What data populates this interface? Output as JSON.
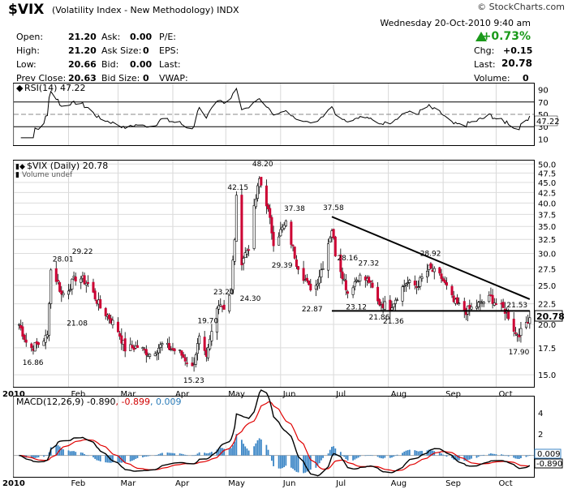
{
  "header": {
    "symbol": "$VIX",
    "description": "(Volatility Index - New Methodology)",
    "exchange": "INDX",
    "copyright": "© StockCharts.com",
    "date_line": "Wednesday  20-Oct-2010  9:40 am",
    "change_pct": "+0.73%"
  },
  "quote": {
    "open": {
      "label": "Open:",
      "value": "21.20"
    },
    "high": {
      "label": "High:",
      "value": "21.20"
    },
    "low": {
      "label": "Low:",
      "value": "20.66"
    },
    "prev_close": {
      "label": "Prev Close:",
      "value": "20.63"
    },
    "ask": {
      "label": "Ask:",
      "value": "0.00"
    },
    "ask_size": {
      "label": "Ask Size:",
      "value": "0"
    },
    "bid": {
      "label": "Bid:",
      "value": "0.00"
    },
    "bid_size": {
      "label": "Bid Size:",
      "value": "0"
    },
    "pe": {
      "label": "P/E:"
    },
    "eps": {
      "label": "EPS:"
    },
    "last_l": {
      "label": "Last:"
    },
    "vwap": {
      "label": "VWAP:"
    },
    "chg": {
      "label": "Chg:",
      "value": "+0.15"
    },
    "last": {
      "label": "Last:",
      "value": "20.78"
    },
    "volume": {
      "label": "Volume:",
      "value": "0"
    }
  },
  "colors": {
    "up": "#ffffff",
    "down": "#cc0033",
    "rsi": "#000000",
    "macd": "#000000",
    "signal": "#e00000",
    "histogram": "#3b86c6",
    "trendline": "#000000"
  },
  "chart_data": [
    {
      "type": "line",
      "title": "RSI(14) 47.22",
      "y_ticks": [
        10,
        30,
        50,
        70,
        90
      ],
      "value_label": "47.22",
      "reference_lines": [
        30,
        70
      ],
      "ylim": [
        0,
        100
      ]
    },
    {
      "type": "candlestick",
      "title": "$VIX (Daily) 20.78",
      "subtitle": "Volume undef",
      "last_label": "20.78",
      "x_ticks": [
        "2010",
        "Feb",
        "Mar",
        "Apr",
        "May",
        "Jun",
        "Jul",
        "Aug",
        "Sep",
        "Oct"
      ],
      "y_ticks": [
        "15.0",
        "17.5",
        "20.0",
        "22.5",
        "25.0",
        "27.5",
        "30.0",
        "32.5",
        "35.0",
        "37.5",
        "40.0",
        "42.5",
        "45.0",
        "47.5",
        "50.0"
      ],
      "ylim": [
        14,
        51
      ],
      "y_scale": "log",
      "annotations": [
        {
          "text": "16.86",
          "x": "2010-01-11",
          "y": 16.86
        },
        {
          "text": "28.01",
          "x": "2010-01-28",
          "y": 28.01
        },
        {
          "text": "21.08",
          "x": "2010-02-05",
          "y": 21.08
        },
        {
          "text": "29.22",
          "x": "2010-02-08",
          "y": 29.22
        },
        {
          "text": "15.23",
          "x": "2010-04-12",
          "y": 15.23
        },
        {
          "text": "19.70",
          "x": "2010-04-20",
          "y": 19.7
        },
        {
          "text": "23.20",
          "x": "2010-04-29",
          "y": 23.2
        },
        {
          "text": "42.15",
          "x": "2010-05-07",
          "y": 42.15
        },
        {
          "text": "24.30",
          "x": "2010-05-14",
          "y": 24.3
        },
        {
          "text": "48.20",
          "x": "2010-05-21",
          "y": 48.2
        },
        {
          "text": "29.39",
          "x": "2010-06-01",
          "y": 29.39
        },
        {
          "text": "37.38",
          "x": "2010-06-08",
          "y": 37.38
        },
        {
          "text": "22.87",
          "x": "2010-06-18",
          "y": 22.87
        },
        {
          "text": "37.58",
          "x": "2010-06-30",
          "y": 37.58
        },
        {
          "text": "28.16",
          "x": "2010-07-08",
          "y": 28.16
        },
        {
          "text": "23.12",
          "x": "2010-07-13",
          "y": 23.12
        },
        {
          "text": "27.32",
          "x": "2010-07-20",
          "y": 27.32
        },
        {
          "text": "21.86",
          "x": "2010-07-26",
          "y": 21.86
        },
        {
          "text": "21.36",
          "x": "2010-08-03",
          "y": 21.36
        },
        {
          "text": "28.92",
          "x": "2010-08-24",
          "y": 28.92
        },
        {
          "text": "21.53",
          "x": "2010-10-12",
          "y": 21.53
        },
        {
          "text": "17.90",
          "x": "2010-10-13",
          "y": 17.9
        }
      ],
      "trendlines": [
        {
          "from": [
            "2010-06-30",
            37.0
          ],
          "to": [
            "2010-10-20",
            23.1
          ]
        },
        {
          "from": [
            "2010-06-30",
            21.6
          ],
          "to": [
            "2010-10-20",
            21.6
          ]
        }
      ],
      "close_path": [
        [
          "2010-01-04",
          20.0
        ],
        [
          "2010-01-08",
          18.1
        ],
        [
          "2010-01-11",
          17.5
        ],
        [
          "2010-01-15",
          17.9
        ],
        [
          "2010-01-20",
          18.7
        ],
        [
          "2010-01-22",
          27.3
        ],
        [
          "2010-01-26",
          25.4
        ],
        [
          "2010-01-28",
          23.7
        ],
        [
          "2010-02-01",
          24.6
        ],
        [
          "2010-02-05",
          26.1
        ],
        [
          "2010-02-08",
          26.0
        ],
        [
          "2010-02-12",
          25.2
        ],
        [
          "2010-02-19",
          22.0
        ],
        [
          "2010-02-24",
          20.8
        ],
        [
          "2010-03-01",
          19.3
        ],
        [
          "2010-03-05",
          17.4
        ],
        [
          "2010-03-12",
          17.6
        ],
        [
          "2010-03-19",
          16.9
        ],
        [
          "2010-03-26",
          17.8
        ],
        [
          "2010-04-05",
          17.0
        ],
        [
          "2010-04-12",
          15.6
        ],
        [
          "2010-04-16",
          18.4
        ],
        [
          "2010-04-20",
          16.3
        ],
        [
          "2010-04-27",
          22.8
        ],
        [
          "2010-04-30",
          22.1
        ],
        [
          "2010-05-04",
          24.3
        ],
        [
          "2010-05-06",
          32.8
        ],
        [
          "2010-05-07",
          40.9
        ],
        [
          "2010-05-10",
          28.8
        ],
        [
          "2010-05-14",
          31.2
        ],
        [
          "2010-05-20",
          45.8
        ],
        [
          "2010-05-24",
          40.1
        ],
        [
          "2010-05-28",
          32.1
        ],
        [
          "2010-06-04",
          35.5
        ],
        [
          "2010-06-10",
          28.5
        ],
        [
          "2010-06-17",
          24.7
        ],
        [
          "2010-06-21",
          25.0
        ],
        [
          "2010-06-25",
          28.1
        ],
        [
          "2010-06-30",
          34.5
        ],
        [
          "2010-07-02",
          30.1
        ],
        [
          "2010-07-09",
          24.0
        ],
        [
          "2010-07-15",
          26.3
        ],
        [
          "2010-07-21",
          25.6
        ],
        [
          "2010-07-26",
          22.7
        ],
        [
          "2010-08-02",
          22.1
        ],
        [
          "2010-08-11",
          25.4
        ],
        [
          "2010-08-17",
          24.9
        ],
        [
          "2010-08-24",
          27.5
        ],
        [
          "2010-08-31",
          26.1
        ],
        [
          "2010-09-07",
          22.7
        ],
        [
          "2010-09-14",
          21.6
        ],
        [
          "2010-09-21",
          22.4
        ],
        [
          "2010-09-28",
          23.3
        ],
        [
          "2010-10-01",
          22.5
        ],
        [
          "2010-10-07",
          21.5
        ],
        [
          "2010-10-12",
          19.0
        ],
        [
          "2010-10-15",
          19.1
        ],
        [
          "2010-10-19",
          20.6
        ],
        [
          "2010-10-20",
          20.78
        ]
      ]
    },
    {
      "type": "line",
      "title": "MACD(12,26,9) -0.890, -0.899, 0.009",
      "title_parts": [
        "MACD(12,26,9) -0.890",
        ", -0.899",
        ", 0.009"
      ],
      "series": [
        {
          "name": "MACD"
        },
        {
          "name": "Signal"
        },
        {
          "name": "Histogram"
        }
      ],
      "x_ticks": [
        "2010",
        "Feb",
        "Mar",
        "Apr",
        "May",
        "Jun",
        "Jul",
        "Aug",
        "Sep",
        "Oct"
      ],
      "y_ticks": [
        "0",
        "2",
        "4"
      ],
      "value_labels": [
        "0.009",
        "-0.890"
      ],
      "ylim": [
        -2,
        5.5
      ]
    }
  ]
}
